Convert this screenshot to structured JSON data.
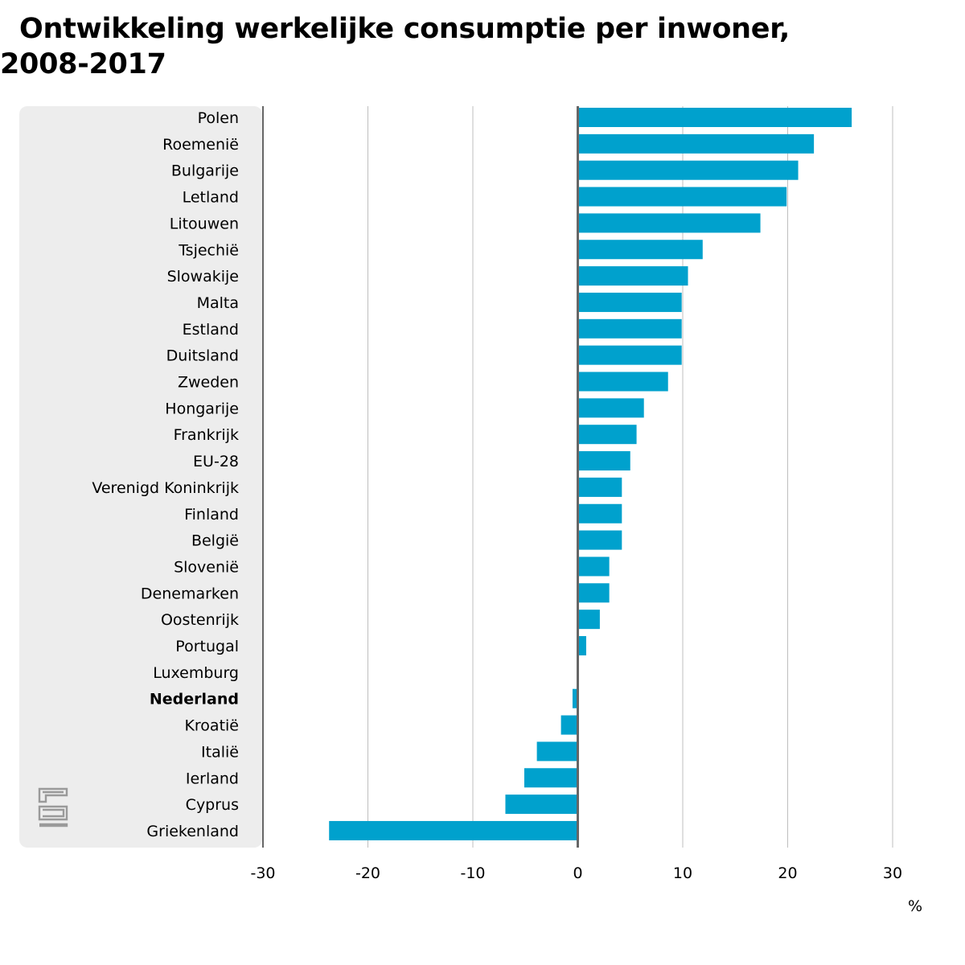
{
  "chart_data": {
    "type": "bar",
    "orientation": "horizontal",
    "title": "Ontwikkeling werkelijke consumptie per inwoner, 2008-2017",
    "xlabel": "%",
    "ylabel": "",
    "xlim": [
      -30,
      30
    ],
    "xticks": [
      -30,
      -20,
      -10,
      0,
      10,
      20,
      30
    ],
    "grid": true,
    "categories": [
      "Polen",
      "Roemenië",
      "Bulgarije",
      "Letland",
      "Litouwen",
      "Tsjechië",
      "Slowakije",
      "Malta",
      "Estland",
      "Duitsland",
      "Zweden",
      "Hongarije",
      "Frankrijk",
      "EU-28",
      "Verenigd Koninkrijk",
      "Finland",
      "België",
      "Slovenië",
      "Denemarken",
      "Oostenrijk",
      "Portugal",
      "Luxemburg",
      "Nederland",
      "Kroatië",
      "Italië",
      "Ierland",
      "Cyprus",
      "Griekenland"
    ],
    "values": [
      26.1,
      22.5,
      21.0,
      19.9,
      17.4,
      11.9,
      10.5,
      9.9,
      9.9,
      9.9,
      8.6,
      6.3,
      5.6,
      5.0,
      4.2,
      4.2,
      4.2,
      3.0,
      3.0,
      2.1,
      0.8,
      0.0,
      -0.5,
      -1.6,
      -3.9,
      -5.1,
      -6.9,
      -23.7
    ],
    "highlight": "Nederland",
    "colors": {
      "bar": "#00a1cd",
      "label_panel": "#ededed",
      "grid": "#bfbfbf",
      "axis": "#666666"
    }
  },
  "logo": {
    "name": "cbs"
  }
}
